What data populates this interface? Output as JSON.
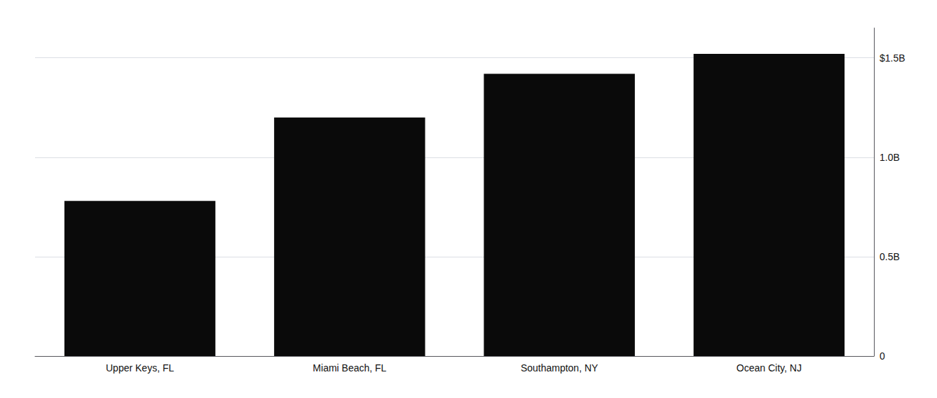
{
  "chart_data": {
    "type": "bar",
    "categories": [
      "Upper Keys, FL",
      "Miami Beach, FL",
      "Southampton, NY",
      "Ocean City, NJ"
    ],
    "values": [
      780000000,
      1200000000,
      1420000000,
      1520000000
    ],
    "color": "#0a0a0a",
    "ylim": [
      0,
      1650000000
    ],
    "yticks": [
      0,
      {
        "value": 500000000,
        "label": "0.5B"
      },
      {
        "value": 1000000000,
        "label": "1.0B"
      },
      {
        "value": 1500000000,
        "label": "$1.5B"
      }
    ],
    "grid": true
  }
}
